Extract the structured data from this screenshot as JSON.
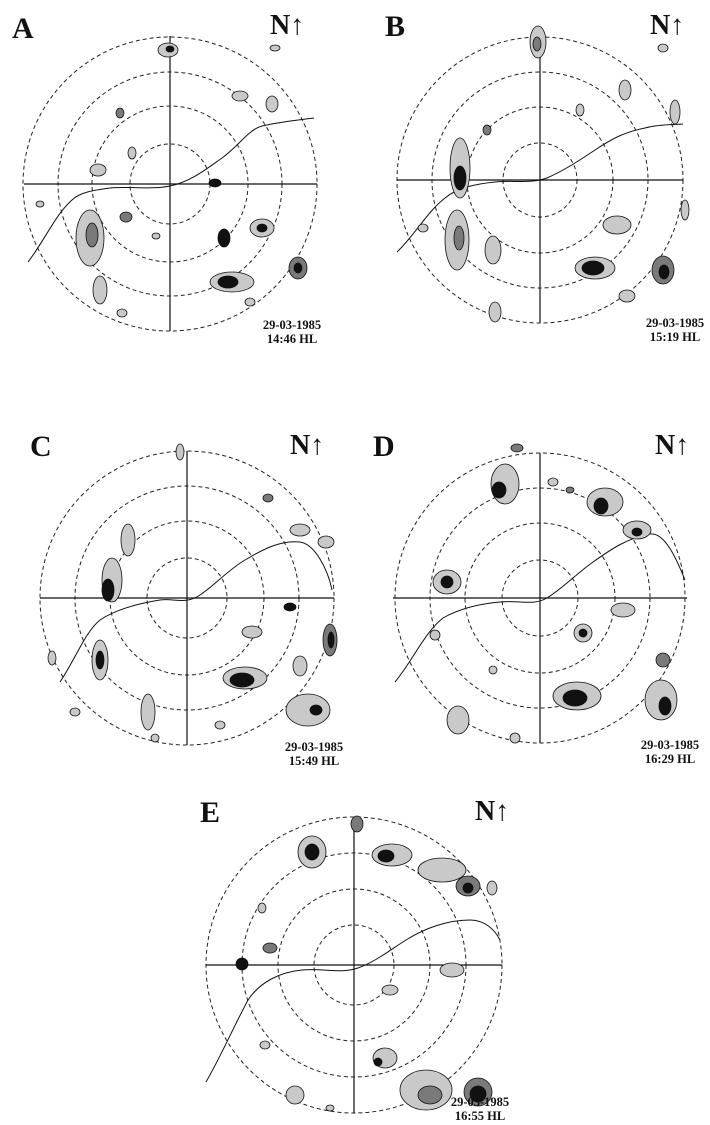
{
  "figure": {
    "north_label": "N↑",
    "panels": [
      {
        "id": "A",
        "label": "A",
        "date": "29-03-1985",
        "time": "14:46 HL"
      },
      {
        "id": "B",
        "label": "B",
        "date": "29-03-1985",
        "time": "15:19 HL"
      },
      {
        "id": "C",
        "label": "C",
        "date": "29-03-1985",
        "time": "15:49 HL"
      },
      {
        "id": "D",
        "label": "D",
        "date": "29-03-1985",
        "time": "16:29 HL"
      },
      {
        "id": "E",
        "label": "E",
        "date": "29-03-1985",
        "time": "16:55 HL"
      }
    ],
    "colors": {
      "light_echo": "#c9c9c9",
      "medium_echo": "#7a7a7a",
      "strong_echo": "#111111",
      "range_ring": "#222222"
    },
    "range_rings": 4,
    "ring_style": "dashed"
  }
}
